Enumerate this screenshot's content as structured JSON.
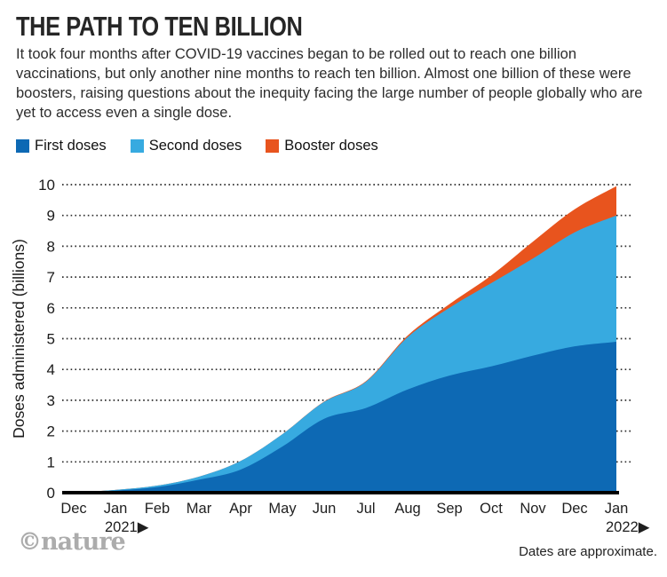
{
  "header": {
    "title": "THE PATH TO TEN BILLION",
    "intro": "It took four months after COVID-19 vaccines began to be rolled out to reach one billion vaccinations, but only another nine months to reach ten billion. Almost one billion of these were boosters, raising questions about the inequity facing the large number of people globally who are yet to access even a single dose."
  },
  "legend": [
    {
      "label": "First doses",
      "color": "#0d69b4"
    },
    {
      "label": "Second doses",
      "color": "#37aae0"
    },
    {
      "label": "Booster doses",
      "color": "#e8541e"
    }
  ],
  "chart_data": {
    "type": "area",
    "stacked": true,
    "x": [
      "Dec",
      "Jan",
      "Feb",
      "Mar",
      "Apr",
      "May",
      "Jun",
      "Jul",
      "Aug",
      "Sep",
      "Oct",
      "Nov",
      "Dec",
      "Jan"
    ],
    "year_markers": [
      {
        "label": "2021▶",
        "month_index": 1
      },
      {
        "label": "2022▶",
        "month_index": 13
      }
    ],
    "series": [
      {
        "name": "First doses",
        "color": "#0d69b4",
        "values": [
          0.005,
          0.07,
          0.18,
          0.42,
          0.75,
          1.5,
          2.4,
          2.75,
          3.35,
          3.8,
          4.1,
          4.45,
          4.75,
          4.9
        ]
      },
      {
        "name": "Second doses",
        "color": "#37aae0",
        "values": [
          0,
          0.02,
          0.05,
          0.1,
          0.28,
          0.4,
          0.55,
          0.85,
          1.7,
          2.2,
          2.7,
          3.15,
          3.7,
          4.1
        ]
      },
      {
        "name": "Booster doses",
        "color": "#e8541e",
        "values": [
          0,
          0,
          0,
          0,
          0,
          0,
          0.01,
          0.02,
          0.05,
          0.12,
          0.25,
          0.55,
          0.75,
          0.95
        ]
      }
    ],
    "title": "THE PATH TO TEN BILLION",
    "xlabel": "",
    "ylabel": "Doses administered (billions)",
    "ylim": [
      0,
      10
    ],
    "yticks": [
      0,
      1,
      2,
      3,
      4,
      5,
      6,
      7,
      8,
      9,
      10
    ],
    "grid": "dotted-horizontal",
    "legend_position": "top"
  },
  "footer": {
    "credit": "©nature",
    "note": "Dates are approximate."
  }
}
